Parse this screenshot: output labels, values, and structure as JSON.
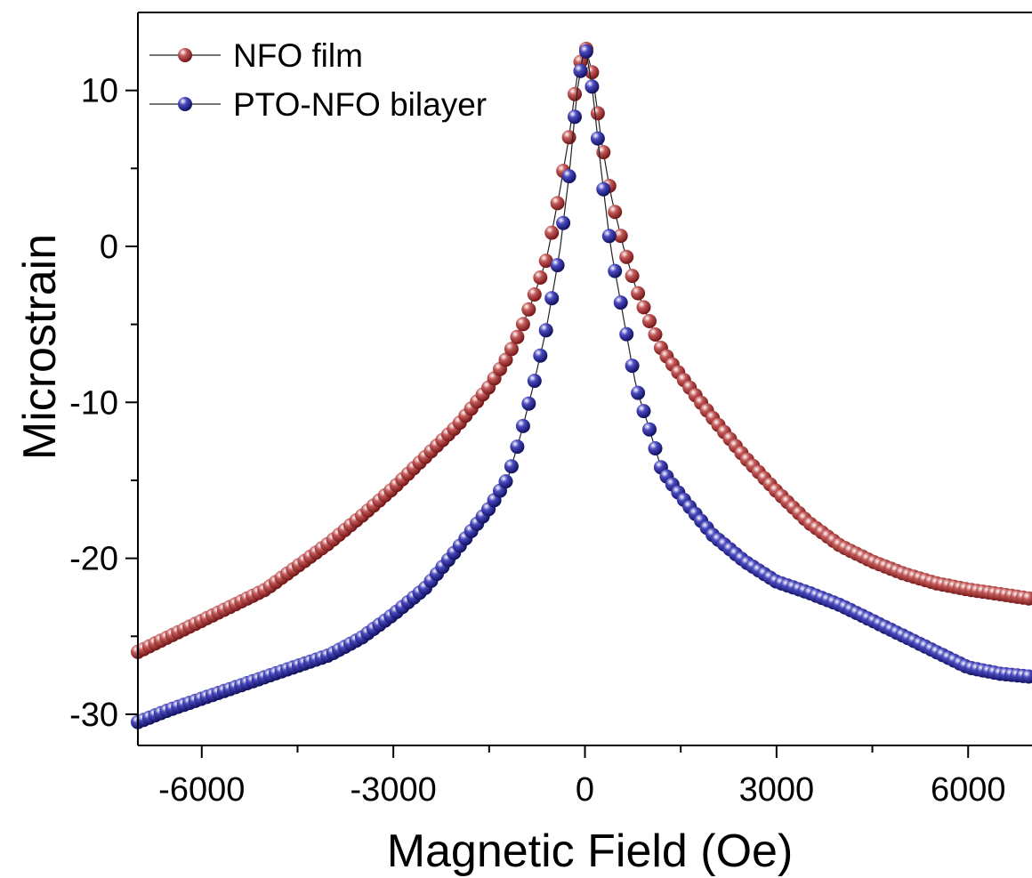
{
  "chart_data": {
    "type": "scatter",
    "title": "",
    "xlabel": "Magnetic Field (Oe)",
    "ylabel": "Microstrain",
    "xlim": [
      -7000,
      7000
    ],
    "ylim": [
      -32,
      15
    ],
    "x_ticks": [
      -6000,
      -3000,
      0,
      3000,
      6000
    ],
    "x_tick_labels": [
      "-6000",
      "-3000",
      "0",
      "3000",
      "6000"
    ],
    "y_ticks": [
      -30,
      -20,
      -10,
      0,
      10
    ],
    "y_tick_labels": [
      "-30",
      "-20",
      "-10",
      "0",
      "10"
    ],
    "grid": false,
    "legend_position": "top-left",
    "series": [
      {
        "name": "NFO film",
        "color": "#8b1a1a",
        "x": [
          -7000,
          -6500,
          -6000,
          -5500,
          -5000,
          -4500,
          -4000,
          -3500,
          -3000,
          -2500,
          -2000,
          -1500,
          -1200,
          -1000,
          -800,
          -600,
          -400,
          -250,
          -120,
          0,
          120,
          250,
          400,
          600,
          800,
          1000,
          1200,
          1500,
          2000,
          2500,
          3000,
          3500,
          4000,
          4500,
          5000,
          5500,
          6000,
          6500,
          7000
        ],
        "values": [
          -26,
          -25,
          -24,
          -23,
          -22,
          -20.5,
          -19,
          -17.3,
          -15.5,
          -13.5,
          -11.5,
          -9,
          -7,
          -5.3,
          -3.2,
          -0.8,
          3.4,
          7,
          11,
          13,
          11,
          7,
          3.4,
          0,
          -2.7,
          -4.7,
          -6.6,
          -8.3,
          -11,
          -13.5,
          -15.7,
          -17.7,
          -19.2,
          -20.2,
          -21,
          -21.6,
          -22,
          -22.3,
          -22.6
        ]
      },
      {
        "name": "PTO-NFO bilayer",
        "color": "#14147a",
        "x": [
          -7000,
          -6500,
          -6000,
          -5500,
          -5000,
          -4500,
          -4000,
          -3500,
          -3000,
          -2500,
          -2000,
          -1500,
          -1200,
          -1000,
          -800,
          -600,
          -400,
          -250,
          -120,
          0,
          120,
          250,
          400,
          600,
          800,
          1000,
          1200,
          1500,
          2000,
          2500,
          3000,
          3500,
          4000,
          4500,
          5000,
          5500,
          6000,
          6500,
          7000
        ],
        "values": [
          -30.5,
          -29.7,
          -29,
          -28.3,
          -27.6,
          -26.9,
          -26.2,
          -25.1,
          -23.6,
          -21.9,
          -19.4,
          -16.8,
          -14.8,
          -12,
          -8.8,
          -5.2,
          -0.5,
          4.5,
          10,
          13,
          10,
          5,
          0,
          -4.5,
          -9,
          -11.6,
          -14.3,
          -16,
          -18.5,
          -20.2,
          -21.5,
          -22.2,
          -23,
          -24,
          -25,
          -26,
          -27,
          -27.4,
          -27.6
        ]
      }
    ]
  }
}
